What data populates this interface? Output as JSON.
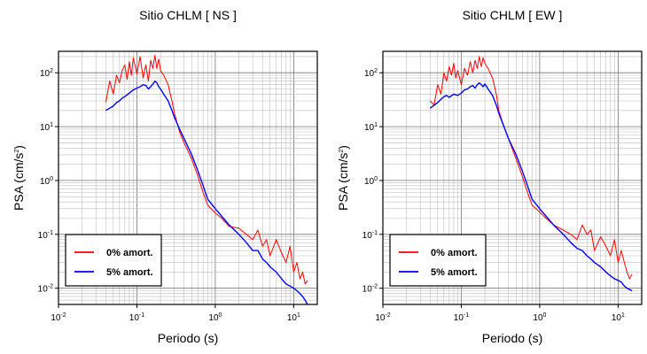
{
  "chart_data": [
    {
      "type": "line",
      "title": "Sitio CHLM [ NS ]",
      "xlabel": "Periodo (s)",
      "ylabel": "PSA (cm/s2)",
      "ylabel_main": "PSA (cm/s",
      "ylabel_sup": "2",
      "ylabel_close": ")",
      "x_scale": "log",
      "y_scale": "log",
      "xlim": [
        0.01,
        20
      ],
      "ylim": [
        0.005,
        250
      ],
      "grid": true,
      "legend": "bottom-left",
      "x_ticks": [
        {
          "base": "10",
          "exp": "-2"
        },
        {
          "base": "10",
          "exp": "-1"
        },
        {
          "base": "10",
          "exp": "0"
        },
        {
          "base": "10",
          "exp": "1"
        }
      ],
      "y_ticks": [
        {
          "base": "10",
          "exp": "-2"
        },
        {
          "base": "10",
          "exp": "-1"
        },
        {
          "base": "10",
          "exp": "0"
        },
        {
          "base": "10",
          "exp": "1"
        },
        {
          "base": "10",
          "exp": "2"
        }
      ],
      "series": [
        {
          "name": "0% amort.",
          "color": "#ff0000",
          "x": [
            0.04,
            0.045,
            0.05,
            0.055,
            0.06,
            0.065,
            0.07,
            0.075,
            0.08,
            0.085,
            0.09,
            0.1,
            0.11,
            0.12,
            0.13,
            0.14,
            0.15,
            0.16,
            0.17,
            0.18,
            0.19,
            0.2,
            0.22,
            0.25,
            0.28,
            0.3,
            0.35,
            0.4,
            0.5,
            0.6,
            0.7,
            0.8,
            1.0,
            1.2,
            1.5,
            2.0,
            2.5,
            3.0,
            3.5,
            4.0,
            4.5,
            5.0,
            6.0,
            7.0,
            8.0,
            9.0,
            10.0,
            11.0,
            12.0,
            13.0,
            14.0,
            15.0
          ],
          "y": [
            28,
            70,
            40,
            90,
            65,
            110,
            140,
            75,
            160,
            90,
            190,
            95,
            200,
            80,
            140,
            70,
            170,
            120,
            210,
            120,
            180,
            110,
            90,
            60,
            30,
            18,
            8,
            5,
            2.5,
            1.2,
            0.6,
            0.35,
            0.25,
            0.2,
            0.14,
            0.13,
            0.1,
            0.08,
            0.12,
            0.06,
            0.08,
            0.04,
            0.08,
            0.045,
            0.03,
            0.06,
            0.02,
            0.03,
            0.015,
            0.02,
            0.012,
            0.014
          ]
        },
        {
          "name": "5% amort.",
          "color": "#0000ff",
          "x": [
            0.04,
            0.045,
            0.05,
            0.055,
            0.06,
            0.065,
            0.07,
            0.08,
            0.09,
            0.1,
            0.11,
            0.12,
            0.13,
            0.14,
            0.15,
            0.16,
            0.17,
            0.18,
            0.19,
            0.2,
            0.22,
            0.25,
            0.28,
            0.3,
            0.35,
            0.4,
            0.5,
            0.6,
            0.7,
            0.8,
            1.0,
            1.2,
            1.5,
            2.0,
            2.5,
            3.0,
            3.5,
            4.0,
            4.5,
            5.0,
            6.0,
            7.0,
            8.0,
            9.0,
            10.0,
            11.0,
            12.0,
            13.0,
            14.0,
            15.0
          ],
          "y": [
            20,
            22,
            24,
            28,
            30,
            34,
            36,
            42,
            48,
            52,
            55,
            60,
            58,
            50,
            55,
            62,
            70,
            65,
            55,
            50,
            40,
            30,
            20,
            15,
            9,
            6,
            3,
            1.5,
            0.8,
            0.45,
            0.3,
            0.22,
            0.15,
            0.1,
            0.07,
            0.05,
            0.05,
            0.035,
            0.03,
            0.025,
            0.02,
            0.015,
            0.012,
            0.011,
            0.01,
            0.009,
            0.008,
            0.007,
            0.006,
            0.005
          ]
        }
      ]
    },
    {
      "type": "line",
      "title": "Sitio CHLM [ EW ]",
      "xlabel": "Periodo (s)",
      "ylabel": "PSA (cm/s2)",
      "ylabel_main": "PSA (cm/s",
      "ylabel_sup": "2",
      "ylabel_close": ")",
      "x_scale": "log",
      "y_scale": "log",
      "xlim": [
        0.01,
        20
      ],
      "ylim": [
        0.005,
        250
      ],
      "grid": true,
      "legend": "bottom-left",
      "x_ticks": [
        {
          "base": "10",
          "exp": "-2"
        },
        {
          "base": "10",
          "exp": "-1"
        },
        {
          "base": "10",
          "exp": "0"
        },
        {
          "base": "10",
          "exp": "1"
        }
      ],
      "y_ticks": [
        {
          "base": "10",
          "exp": "-2"
        },
        {
          "base": "10",
          "exp": "-1"
        },
        {
          "base": "10",
          "exp": "0"
        },
        {
          "base": "10",
          "exp": "1"
        },
        {
          "base": "10",
          "exp": "2"
        }
      ],
      "series": [
        {
          "name": "0% amort.",
          "color": "#ff0000",
          "x": [
            0.04,
            0.045,
            0.05,
            0.055,
            0.06,
            0.065,
            0.07,
            0.075,
            0.08,
            0.085,
            0.09,
            0.1,
            0.11,
            0.12,
            0.13,
            0.14,
            0.15,
            0.16,
            0.17,
            0.18,
            0.19,
            0.2,
            0.22,
            0.25,
            0.28,
            0.3,
            0.35,
            0.4,
            0.5,
            0.6,
            0.7,
            0.8,
            1.0,
            1.2,
            1.5,
            2.0,
            2.5,
            3.0,
            3.5,
            4.0,
            4.5,
            5.0,
            6.0,
            7.0,
            8.0,
            9.0,
            10.0,
            11.0,
            12.0,
            13.0,
            14.0,
            15.0
          ],
          "y": [
            30,
            25,
            60,
            40,
            100,
            70,
            130,
            90,
            150,
            80,
            110,
            60,
            120,
            90,
            160,
            100,
            170,
            120,
            200,
            130,
            190,
            150,
            120,
            80,
            40,
            20,
            10,
            6,
            2.5,
            1.2,
            0.6,
            0.35,
            0.26,
            0.2,
            0.15,
            0.12,
            0.1,
            0.08,
            0.15,
            0.1,
            0.12,
            0.05,
            0.09,
            0.06,
            0.04,
            0.08,
            0.03,
            0.05,
            0.03,
            0.02,
            0.015,
            0.018
          ]
        },
        {
          "name": "5% amort.",
          "color": "#0000ff",
          "x": [
            0.04,
            0.045,
            0.05,
            0.055,
            0.06,
            0.065,
            0.07,
            0.08,
            0.09,
            0.1,
            0.11,
            0.12,
            0.13,
            0.14,
            0.15,
            0.16,
            0.17,
            0.18,
            0.19,
            0.2,
            0.22,
            0.25,
            0.28,
            0.3,
            0.35,
            0.4,
            0.5,
            0.6,
            0.7,
            0.8,
            1.0,
            1.2,
            1.5,
            2.0,
            2.5,
            3.0,
            3.5,
            4.0,
            4.5,
            5.0,
            6.0,
            7.0,
            8.0,
            9.0,
            10.0,
            11.0,
            12.0,
            13.0,
            14.0,
            15.0
          ],
          "y": [
            22,
            25,
            28,
            32,
            36,
            38,
            35,
            40,
            38,
            42,
            48,
            50,
            55,
            58,
            52,
            60,
            65,
            60,
            55,
            62,
            50,
            38,
            25,
            18,
            10,
            6,
            3,
            1.5,
            0.8,
            0.45,
            0.3,
            0.22,
            0.15,
            0.1,
            0.07,
            0.055,
            0.05,
            0.04,
            0.035,
            0.03,
            0.025,
            0.02,
            0.017,
            0.015,
            0.014,
            0.013,
            0.011,
            0.01,
            0.0095,
            0.009
          ]
        }
      ]
    }
  ]
}
